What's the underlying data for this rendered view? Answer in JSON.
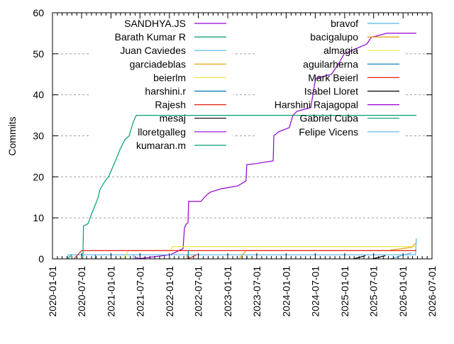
{
  "chart_data": {
    "type": "line",
    "title": "",
    "xlabel": "",
    "ylabel": "Commits",
    "xlim": [
      "2020-01-01",
      "2026-07-01"
    ],
    "ylim": [
      0,
      60
    ],
    "x_ticks": [
      "2020-01-01",
      "2020-07-01",
      "2021-01-01",
      "2021-07-01",
      "2022-01-01",
      "2022-07-01",
      "2023-01-01",
      "2023-07-01",
      "2024-01-01",
      "2024-07-01",
      "2025-01-01",
      "2025-07-01",
      "2026-01-01",
      "2026-07-01"
    ],
    "y_ticks": [
      0,
      10,
      20,
      30,
      40,
      50,
      60
    ],
    "grid": "horizontal dotted",
    "legend_placement": "top, two columns",
    "series": [
      {
        "name": "SANDHYA.JS",
        "color": "#9400d3",
        "points": [
          [
            "2021-06-12",
            0
          ],
          [
            "2022-01-07",
            1
          ],
          [
            "2022-03-27",
            2.5
          ],
          [
            "2022-04-05",
            7.5
          ],
          [
            "2022-04-14",
            8.4
          ],
          [
            "2022-04-27",
            8.8
          ],
          [
            "2022-05-01",
            14
          ],
          [
            "2022-07-16",
            14
          ],
          [
            "2022-08-25",
            15.7
          ],
          [
            "2022-09-16",
            16.3
          ],
          [
            "2022-11-22",
            17.1
          ],
          [
            "2023-03-04",
            17.8
          ],
          [
            "2023-04-25",
            19
          ],
          [
            "2023-04-30",
            23
          ],
          [
            "2023-06-22",
            23.2
          ],
          [
            "2023-10-12",
            23.9
          ],
          [
            "2023-10-16",
            30
          ],
          [
            "2023-11-16",
            31
          ],
          [
            "2024-01-21",
            32
          ],
          [
            "2024-02-12",
            35
          ],
          [
            "2024-03-10",
            36
          ],
          [
            "2024-06-03",
            36.9
          ],
          [
            "2024-06-21",
            41.2
          ],
          [
            "2024-07-04",
            44
          ],
          [
            "2024-10-10",
            45
          ],
          [
            "2024-11-24",
            47.6
          ],
          [
            "2024-12-29",
            50
          ],
          [
            "2025-05-20",
            52.4
          ],
          [
            "2025-06-16",
            54
          ],
          [
            "2025-09-21",
            55
          ],
          [
            "2026-03-25",
            55
          ]
        ]
      },
      {
        "name": "Barath Kumar R",
        "color": "#009e73",
        "points": [
          [
            "2020-07-09",
            0
          ],
          [
            "2020-07-13",
            8
          ],
          [
            "2020-08-10",
            8.6
          ],
          [
            "2020-09-02",
            11
          ],
          [
            "2020-10-03",
            14
          ],
          [
            "2020-10-12",
            15
          ],
          [
            "2020-10-25",
            17
          ],
          [
            "2020-11-25",
            19
          ],
          [
            "2020-12-17",
            20
          ],
          [
            "2021-01-13",
            22.5
          ],
          [
            "2021-01-30",
            24
          ],
          [
            "2021-03-02",
            27
          ],
          [
            "2021-03-28",
            29
          ],
          [
            "2021-04-24",
            30
          ],
          [
            "2021-05-21",
            33.5
          ],
          [
            "2021-06-08",
            35
          ],
          [
            "2026-03-25",
            35
          ]
        ]
      },
      {
        "name": "Juan Caviedes",
        "color": "#56b4e9",
        "points": [
          [
            "2020-04-07",
            0
          ],
          [
            "2020-04-08",
            1
          ],
          [
            "2026-03-20",
            1
          ],
          [
            "2026-03-25",
            5
          ]
        ]
      },
      {
        "name": "garciadeblas",
        "color": "#e69f00",
        "points": [
          [
            "2023-03-13",
            0
          ],
          [
            "2023-04-25",
            2
          ],
          [
            "2025-10-13",
            2
          ],
          [
            "2025-10-20",
            2.2
          ],
          [
            "2026-02-23",
            2.8
          ],
          [
            "2026-03-20",
            3.8
          ]
        ]
      },
      {
        "name": "beierlm",
        "color": "#f0e442",
        "points": [
          [
            "2021-03-19",
            0
          ],
          [
            "2021-04-20",
            2
          ],
          [
            "2022-01-07",
            2
          ],
          [
            "2022-01-20",
            3
          ],
          [
            "2026-03-25",
            3
          ]
        ]
      },
      {
        "name": "harshini.r",
        "color": "#0072b2",
        "points": [
          [
            "2020-09-25",
            0
          ],
          [
            "2020-09-26",
            1
          ]
        ]
      },
      {
        "name": "Rajesh",
        "color": "#e51e10",
        "points": [
          [
            "2020-05-14",
            0
          ],
          [
            "2020-07-01",
            2
          ],
          [
            "2026-03-25",
            2
          ]
        ]
      },
      {
        "name": "mesaj",
        "color": "#000000",
        "points": [
          [
            "2025-02-25",
            0
          ],
          [
            "2025-05-11",
            0.8
          ]
        ]
      },
      {
        "name": "lloretgalleg",
        "color": "#9400d3",
        "points": [
          [
            "2021-06-10",
            0
          ],
          [
            "2021-06-12",
            0.5
          ]
        ]
      },
      {
        "name": "kumaran.m",
        "color": "#009e73",
        "points": [
          [
            "2020-04-05",
            0
          ],
          [
            "2020-05-01",
            1
          ]
        ]
      },
      {
        "name": "bravof",
        "color": "#56b4e9",
        "points": [
          [
            "2021-05-20",
            0
          ],
          [
            "2021-05-22",
            1
          ]
        ]
      },
      {
        "name": "bacigalupo",
        "color": "#e69f00",
        "points": [
          [
            "2022-04-20",
            0
          ],
          [
            "2022-04-22",
            1
          ]
        ]
      },
      {
        "name": "almagia",
        "color": "#f0e442",
        "points": [
          [
            "2021-03-10",
            0
          ],
          [
            "2021-03-12",
            0.5
          ]
        ]
      },
      {
        "name": "aguilarherna",
        "color": "#0072b2",
        "points": [
          [
            "2022-04-28",
            0
          ],
          [
            "2022-04-29",
            2
          ]
        ]
      },
      {
        "name": "Mark Beierl",
        "color": "#e51e10",
        "points": [
          [
            "2022-04-27",
            0
          ],
          [
            "2022-06-20",
            1
          ]
        ]
      },
      {
        "name": "Isabel Lloret",
        "color": "#000000",
        "points": [
          [
            "2025-06-24",
            0
          ],
          [
            "2025-09-12",
            0.8
          ]
        ]
      },
      {
        "name": "Harshini Rajagopal",
        "color": "#9400d3",
        "points": [
          [
            "2021-06-15",
            0
          ],
          [
            "2021-06-20",
            0.3
          ]
        ]
      },
      {
        "name": "Gabriel Cuba",
        "color": "#009e73",
        "points": [
          [
            "2023-04-28",
            0
          ],
          [
            "2023-04-30",
            0.8
          ]
        ]
      },
      {
        "name": "Felipe Vicens",
        "color": "#56b4e9",
        "points": [
          [
            "2025-10-13",
            0
          ],
          [
            "2026-02-23",
            1.5
          ]
        ]
      }
    ]
  }
}
